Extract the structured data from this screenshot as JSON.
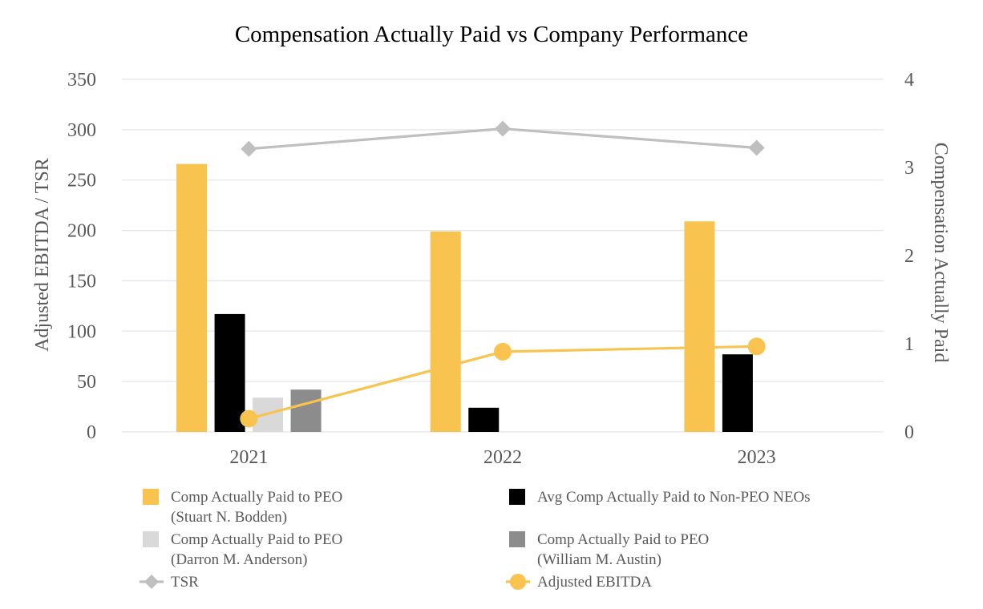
{
  "chart_data": {
    "type": "bar",
    "title": "Compensation Actually Paid vs Company Performance",
    "categories": [
      "2021",
      "2022",
      "2023"
    ],
    "ylabel": "Adjusted EBITDA / TSR",
    "y2label": "Compensation Actually Paid",
    "ylim": [
      0,
      350
    ],
    "yticks": [
      0,
      50,
      100,
      150,
      200,
      250,
      300,
      350
    ],
    "y2lim": [
      0,
      4
    ],
    "y2ticks": [
      0,
      1,
      2,
      3,
      4
    ],
    "grid": true,
    "legend_position": "bottom",
    "series": [
      {
        "name": "Comp Actually Paid to PEO (Stuart N. Bodden)",
        "legend_lines": [
          "Comp Actually Paid to PEO",
          "(Stuart N. Bodden)"
        ],
        "kind": "bar",
        "color": "#F8C34F",
        "values": [
          266,
          199,
          209
        ]
      },
      {
        "name": "Avg Comp Actually Paid to Non-PEO NEOs",
        "legend_lines": [
          "Avg Comp Actually Paid to Non-PEO NEOs"
        ],
        "kind": "bar",
        "color": "#000000",
        "values": [
          117,
          24,
          77
        ]
      },
      {
        "name": "Comp Actually Paid to PEO (Darron M. Anderson)",
        "legend_lines": [
          "Comp Actually Paid to PEO",
          "(Darron M. Anderson)"
        ],
        "kind": "bar",
        "color": "#D9D9D9",
        "values": [
          34,
          null,
          null
        ]
      },
      {
        "name": "Comp Actually Paid to PEO (William M. Austin)",
        "legend_lines": [
          "Comp Actually Paid to PEO",
          "(William M. Austin)"
        ],
        "kind": "bar",
        "color": "#8C8C8C",
        "values": [
          42,
          null,
          null
        ]
      },
      {
        "name": "TSR",
        "legend_lines": [
          "TSR"
        ],
        "kind": "line",
        "marker": "diamond",
        "axis": "left",
        "color": "#BFBFBF",
        "values": [
          281,
          301,
          282
        ]
      },
      {
        "name": "Adjusted EBITDA",
        "legend_lines": [
          "Adjusted EBITDA"
        ],
        "kind": "line",
        "marker": "circle",
        "axis": "right",
        "color": "#F8C34F",
        "values": [
          0.15,
          0.91,
          0.97
        ]
      }
    ]
  }
}
